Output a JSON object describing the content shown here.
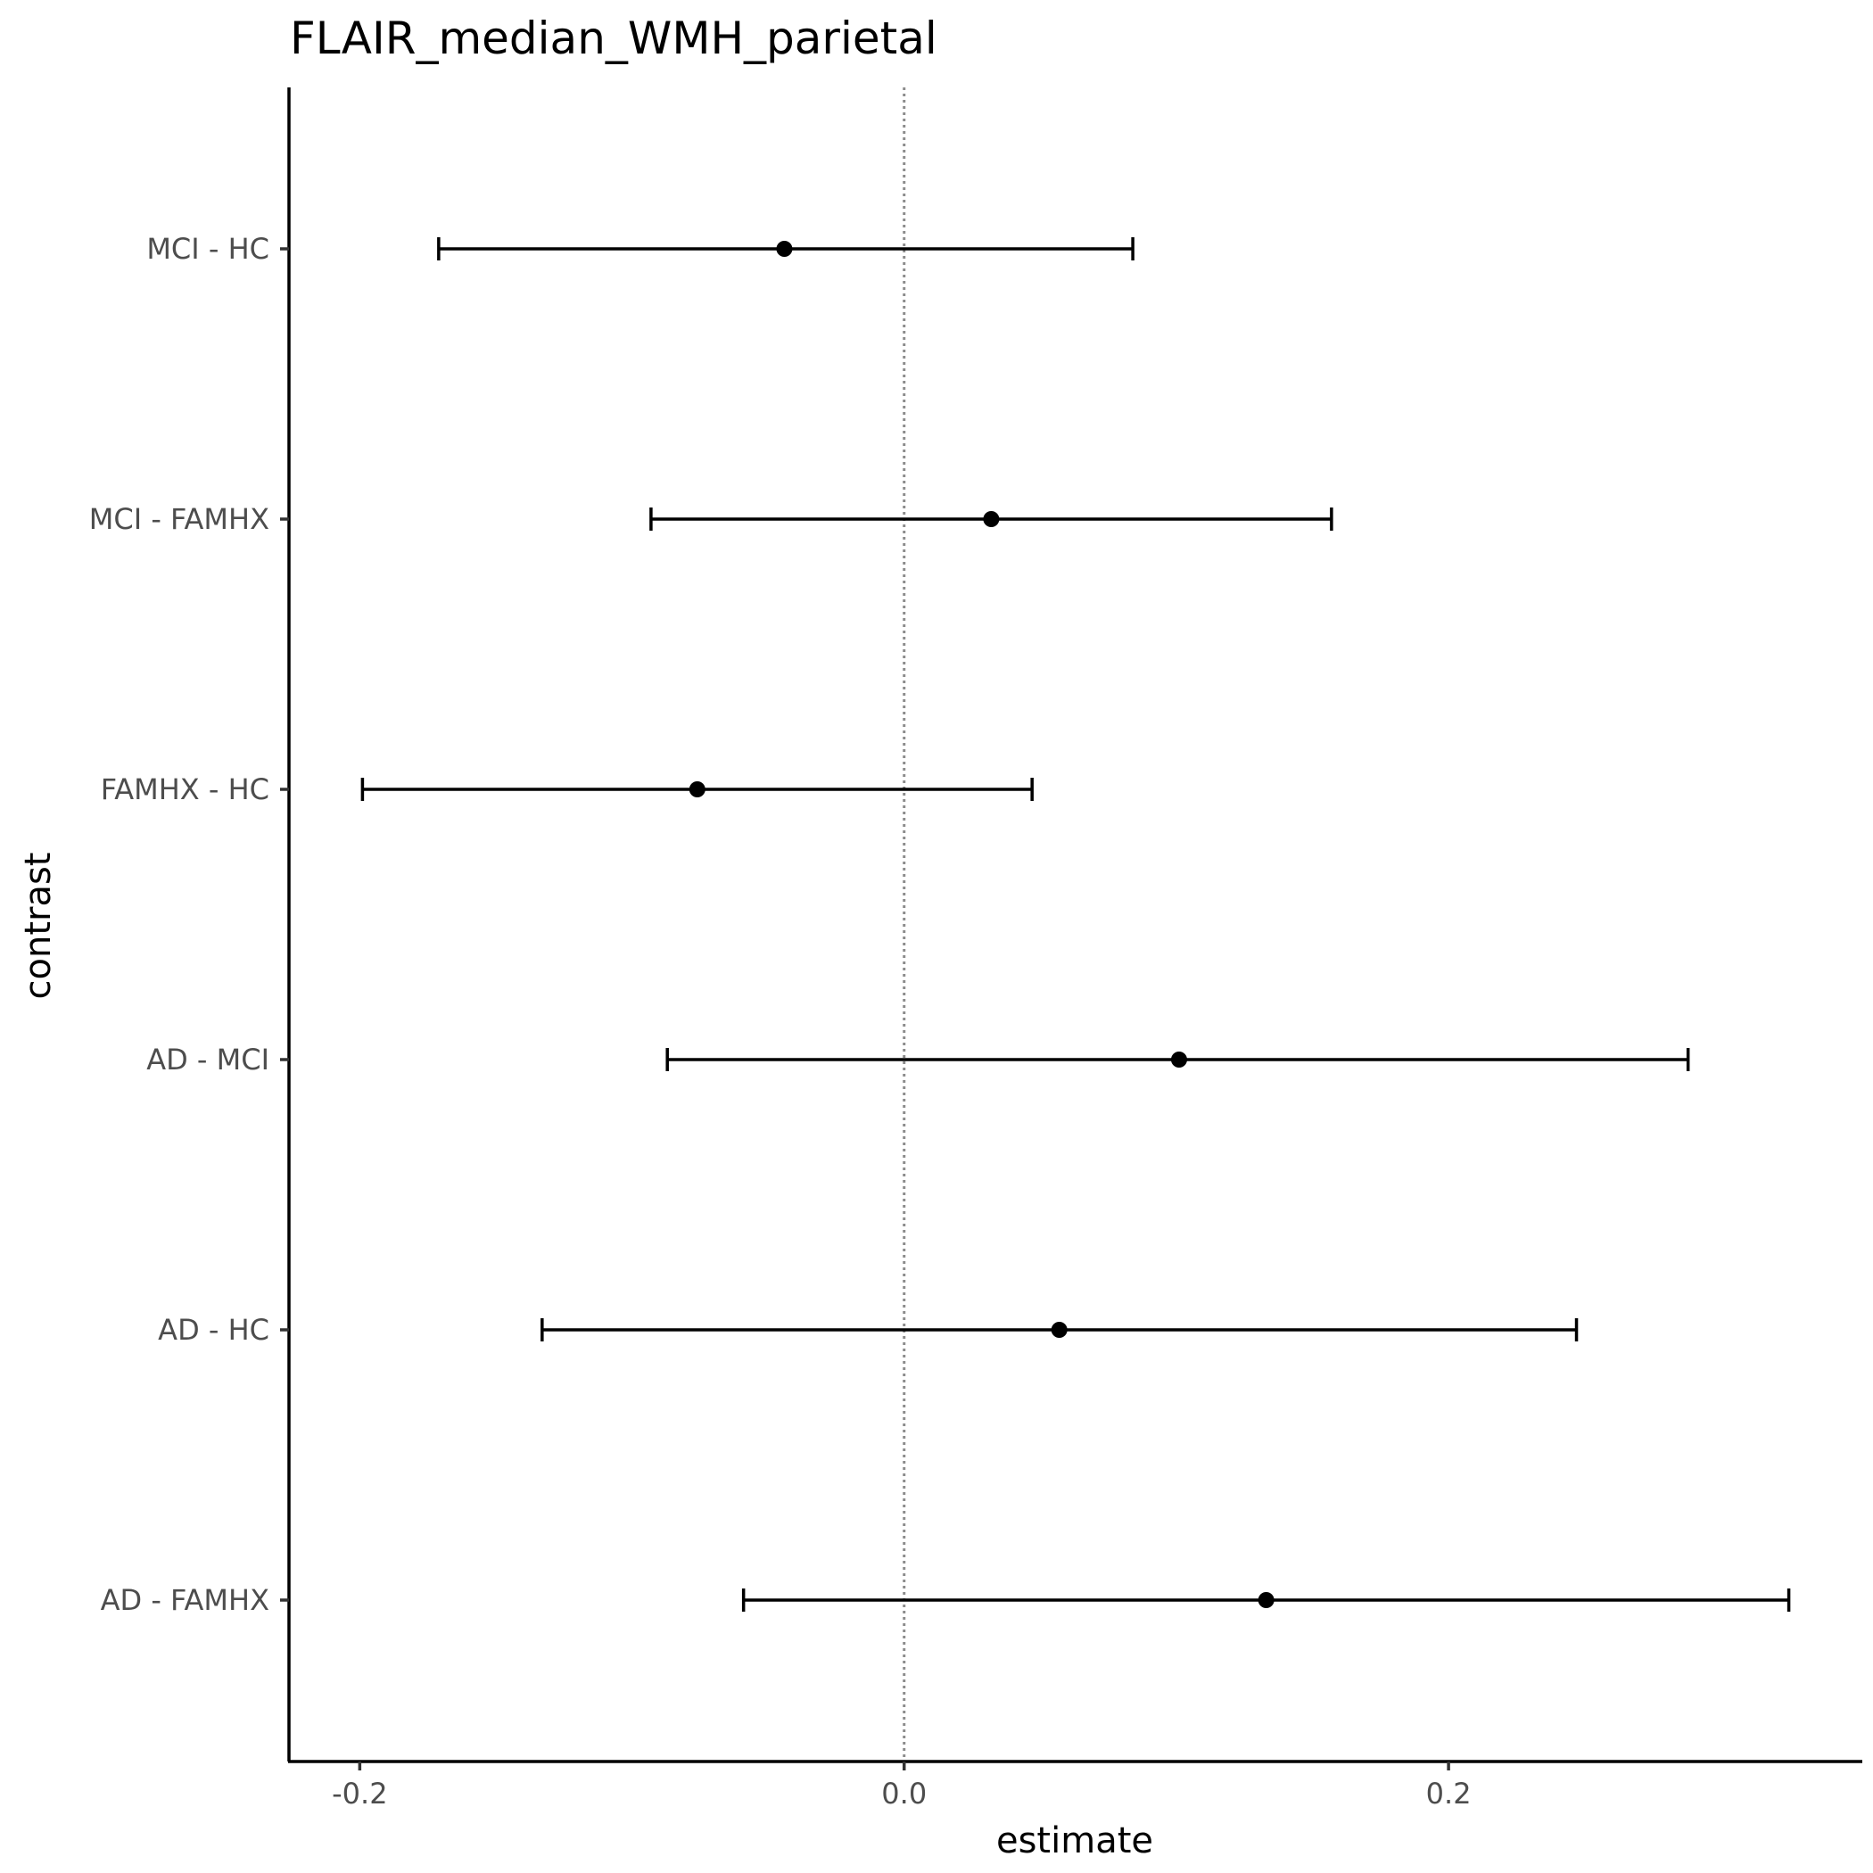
{
  "chart_data": {
    "type": "forest",
    "title": "FLAIR_median_WMH_parietal",
    "xlabel": "estimate",
    "ylabel": "contrast",
    "xlim": [
      -0.226,
      0.352
    ],
    "xticks": [
      {
        "value": -0.2,
        "label": "-0.2"
      },
      {
        "value": 0.0,
        "label": "0.0"
      },
      {
        "value": 0.2,
        "label": "0.2"
      }
    ],
    "reference_line": {
      "value": 0.0,
      "style": "dotted",
      "color": "#8c8c8c"
    },
    "grid": false,
    "rows": [
      {
        "label": "MCI - HC",
        "estimate": -0.044,
        "lower": -0.171,
        "upper": 0.084
      },
      {
        "label": "MCI - FAMHX",
        "estimate": 0.032,
        "lower": -0.093,
        "upper": 0.157
      },
      {
        "label": "FAMHX - HC",
        "estimate": -0.076,
        "lower": -0.199,
        "upper": 0.047
      },
      {
        "label": "AD - MCI",
        "estimate": 0.101,
        "lower": -0.087,
        "upper": 0.288
      },
      {
        "label": "AD - HC",
        "estimate": 0.057,
        "lower": -0.133,
        "upper": 0.247
      },
      {
        "label": "AD - FAMHX",
        "estimate": 0.133,
        "lower": -0.059,
        "upper": 0.325
      }
    ],
    "colors": {
      "marker": "#000000",
      "axis": "#000000",
      "tick_label": "#4d4d4d"
    }
  }
}
